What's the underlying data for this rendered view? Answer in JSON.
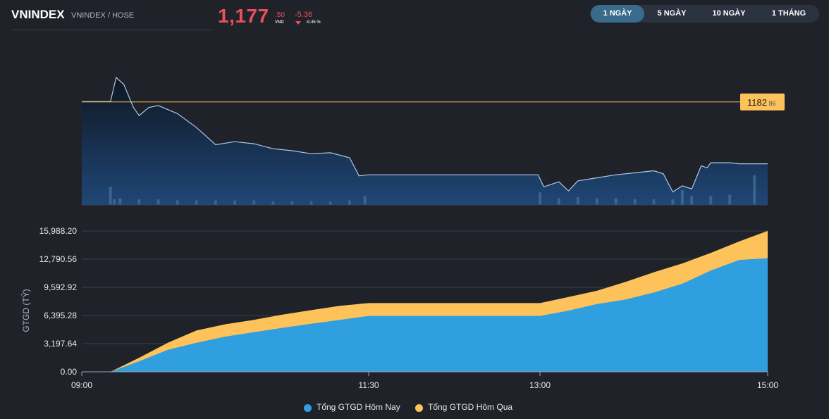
{
  "header": {
    "title": "VNINDEX",
    "subtitle": "VNINDEX / HOSE",
    "price_int": "1,177",
    "price_dec": ".50",
    "currency": "VND",
    "change": "-5.36",
    "change_pct": "-0.45 %"
  },
  "tabs": [
    {
      "label": "1 NGÀY",
      "active": true
    },
    {
      "label": "5 NGÀY",
      "active": false
    },
    {
      "label": "10 NGÀY",
      "active": false
    },
    {
      "label": "1 THÁNG",
      "active": false
    }
  ],
  "colors": {
    "down": "#e8505b",
    "today": "#2f9fe0",
    "yesterday": "#fdc35a",
    "reference": "#fdc35a",
    "price_line": "#a9c9e8"
  },
  "legend": {
    "today": "Tổng GTGD Hôm Nay",
    "yesterday": "Tổng GTGD Hôm Qua"
  },
  "chart_data": [
    {
      "type": "line",
      "name": "price",
      "reference_value": 1182.86,
      "reference_label_int": "1182",
      "reference_label_dec": ".86",
      "x_unit": "time",
      "series": [
        {
          "values_time": [
            "09:00",
            "09:15",
            "09:18",
            "09:22",
            "09:27",
            "09:30",
            "09:35",
            "09:40",
            "09:50",
            "10:00",
            "10:10",
            "10:20",
            "10:30",
            "10:40",
            "10:50",
            "11:00",
            "11:10",
            "11:20",
            "11:25",
            "11:30",
            "12:00",
            "12:30",
            "12:59",
            "13:02",
            "13:10",
            "13:15",
            "13:20",
            "13:30",
            "13:40",
            "13:50",
            "14:00",
            "14:05",
            "14:10",
            "14:15",
            "14:20",
            "14:25",
            "14:28",
            "14:30",
            "14:40",
            "14:45",
            "15:00"
          ],
          "values": [
            1182.9,
            1182.9,
            1185.3,
            1184.6,
            1182.3,
            1181.5,
            1182.3,
            1182.5,
            1181.7,
            1180.3,
            1178.6,
            1178.9,
            1178.7,
            1178.2,
            1178.0,
            1177.7,
            1177.8,
            1177.3,
            1175.5,
            1175.6,
            1175.6,
            1175.6,
            1175.6,
            1174.4,
            1174.9,
            1174.0,
            1175.0,
            1175.3,
            1175.6,
            1175.8,
            1176.0,
            1175.7,
            1173.9,
            1174.5,
            1174.2,
            1176.5,
            1176.3,
            1176.8,
            1176.8,
            1176.7,
            1176.7
          ]
        }
      ],
      "volume": {
        "values_time": [
          "09:15",
          "09:17",
          "09:20",
          "09:30",
          "09:40",
          "09:50",
          "10:00",
          "10:10",
          "10:20",
          "10:30",
          "10:40",
          "10:50",
          "11:00",
          "11:10",
          "11:20",
          "11:28",
          "13:00",
          "13:10",
          "13:20",
          "13:30",
          "13:40",
          "13:50",
          "14:00",
          "14:10",
          "14:15",
          "14:20",
          "14:30",
          "14:40",
          "14:50",
          "14:53"
        ],
        "values": [
          8,
          2.5,
          3,
          2.5,
          2.5,
          2,
          2,
          2,
          2,
          2,
          1.5,
          1.5,
          1.5,
          1.5,
          2,
          4,
          5.5,
          3,
          3.5,
          3,
          3,
          2.5,
          2.5,
          2.5,
          6.5,
          4,
          4,
          4.5,
          0,
          13
        ]
      }
    },
    {
      "type": "area",
      "ylabel": "GTGD (TỶ)",
      "yticks": [
        "15,988.20",
        "12,790.56",
        "9,592.92",
        "6,395.28",
        "3,197.64",
        "0.00"
      ],
      "ylim": [
        0,
        15988.2
      ],
      "xticks": [
        "09:00",
        "11:30",
        "13:00",
        "15:00"
      ],
      "series": [
        {
          "name": "Tổng GTGD Hôm Nay",
          "x": [
            "09:00",
            "09:15",
            "09:30",
            "09:45",
            "10:00",
            "10:15",
            "10:30",
            "10:45",
            "11:00",
            "11:15",
            "11:30",
            "12:00",
            "13:00",
            "13:15",
            "13:30",
            "13:45",
            "14:00",
            "14:15",
            "14:30",
            "14:45",
            "15:00"
          ],
          "y": [
            0,
            0,
            1200,
            2500,
            3300,
            4000,
            4500,
            5000,
            5450,
            5900,
            6350,
            6350,
            6350,
            6950,
            7700,
            8200,
            9000,
            10000,
            11500,
            12700,
            12900
          ]
        },
        {
          "name": "Tổng GTGD Hôm Qua",
          "x": [
            "09:00",
            "09:15",
            "09:30",
            "09:45",
            "10:00",
            "10:15",
            "10:30",
            "10:45",
            "11:00",
            "11:15",
            "11:30",
            "12:00",
            "13:00",
            "13:15",
            "13:30",
            "13:45",
            "14:00",
            "14:15",
            "14:30",
            "14:45",
            "15:00"
          ],
          "y": [
            0,
            0,
            1600,
            3300,
            4700,
            5400,
            5900,
            6500,
            7000,
            7500,
            7800,
            7800,
            7800,
            8500,
            9200,
            10200,
            11300,
            12300,
            13500,
            14800,
            16000
          ]
        }
      ]
    }
  ]
}
